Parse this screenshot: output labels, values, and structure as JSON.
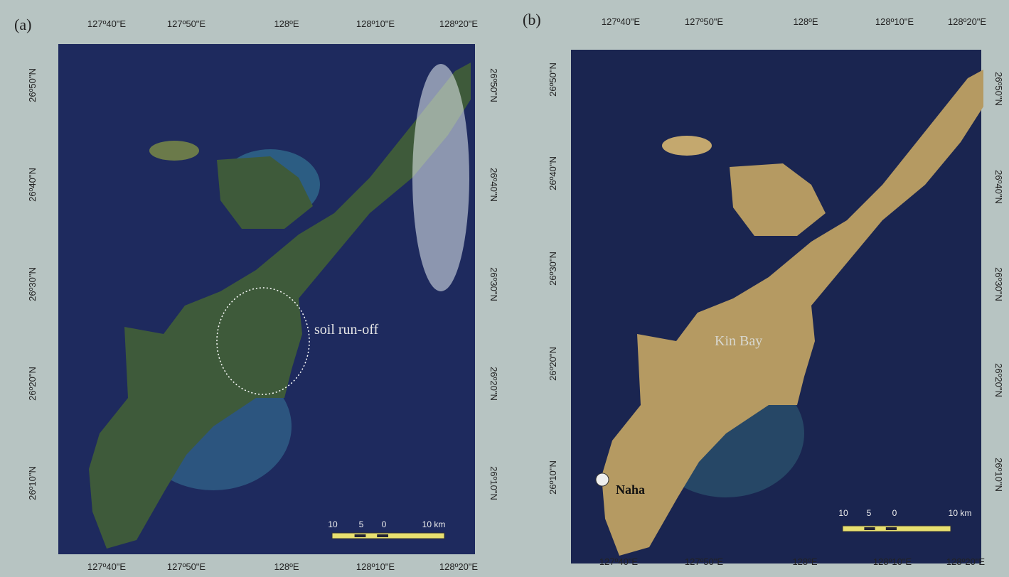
{
  "panels": [
    {
      "label": "(a)",
      "x_labels": [
        "127º40\"E",
        "127º50\"E",
        "128ºE",
        "128º10\"E",
        "128º20\"E"
      ],
      "y_labels": [
        "26º50\"N",
        "26º40\"N",
        "26º30\"N",
        "26º20\"N",
        "26º10\"N"
      ],
      "annotations": [
        "soil run-off"
      ],
      "scale_bar": [
        "10",
        "5",
        "0",
        "10 km"
      ]
    },
    {
      "label": "(b)",
      "x_labels": [
        "127º40\"E",
        "127º50\"E",
        "128ºE",
        "128º10\"E",
        "128º20\"E"
      ],
      "y_labels": [
        "26º50\"N",
        "26º40\"N",
        "26º30\"N",
        "26º20\"N",
        "26º10\"N"
      ],
      "annotations": [
        "Kin Bay",
        "Naha"
      ],
      "scale_bar": [
        "10",
        "5",
        "0",
        "10 km"
      ]
    }
  ]
}
